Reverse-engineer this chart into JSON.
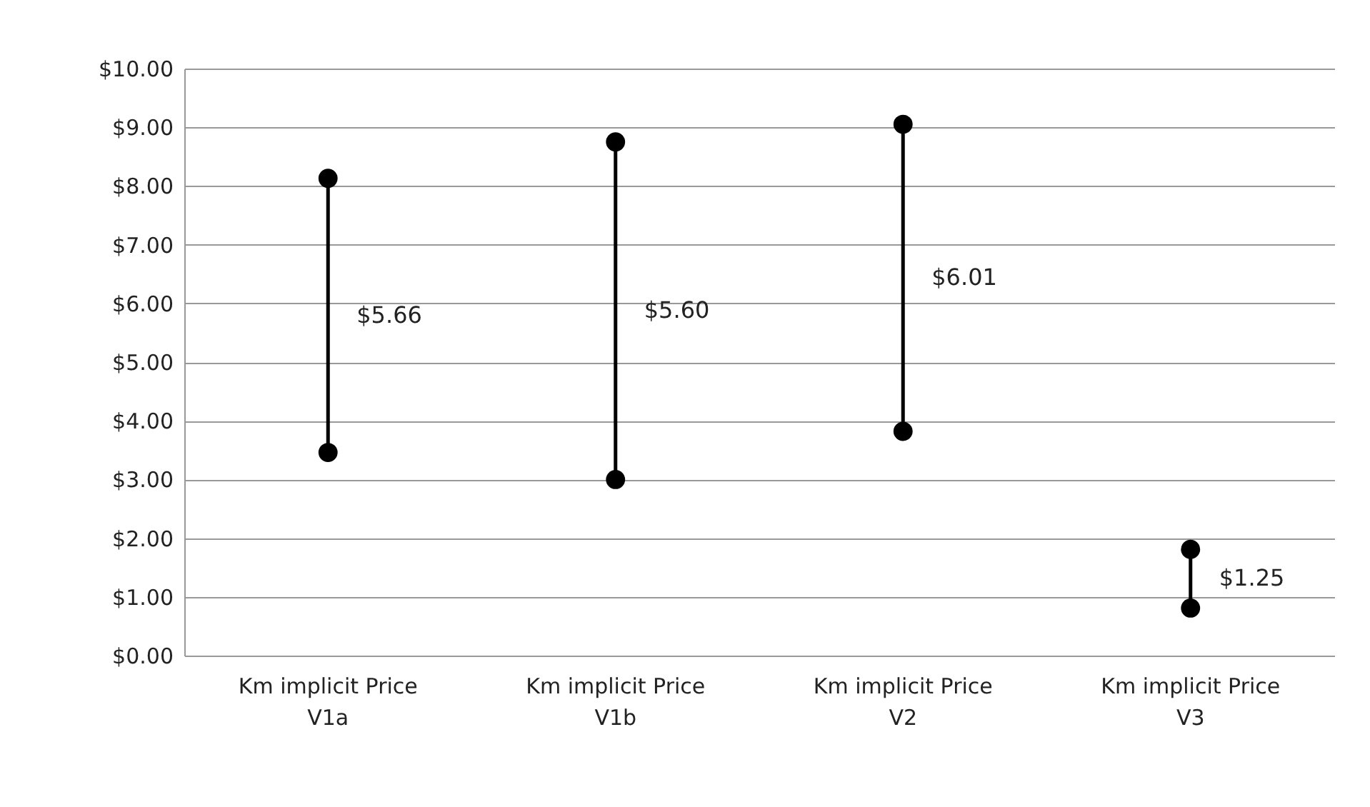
{
  "chart_data": {
    "type": "scatter",
    "categories": [
      "Km implicit Price V1a",
      "Km implicit Price V1b",
      "Km implicit Price V2",
      "Km implicit Price V3"
    ],
    "series": [
      {
        "color": "#000000",
        "values": [
          8.13,
          8.75,
          9.05,
          1.81
        ]
      },
      {
        "color": "#000000",
        "values": [
          3.46,
          3.0,
          3.82,
          0.81
        ]
      }
    ],
    "ylim": [
      0,
      10
    ],
    "yticks": [
      {
        "value": 0,
        "label": "$0.00"
      },
      {
        "value": 1,
        "label": "$1.00"
      },
      {
        "value": 2,
        "label": "$2.00"
      },
      {
        "value": 3,
        "label": "$3.00"
      },
      {
        "value": 4,
        "label": "$4.00"
      },
      {
        "value": 5,
        "label": "$5.00"
      },
      {
        "value": 6,
        "label": "$6.00"
      },
      {
        "value": 7,
        "label": "$7.00"
      },
      {
        "value": 8,
        "label": "$8.00"
      },
      {
        "value": 9,
        "label": "$9.00"
      },
      {
        "value": 10,
        "label": "$10.00"
      }
    ],
    "annotations": [
      "$5.66",
      "$5.60",
      "$6.01",
      "$1.25"
    ],
    "grid": "y",
    "marker": "circle"
  }
}
